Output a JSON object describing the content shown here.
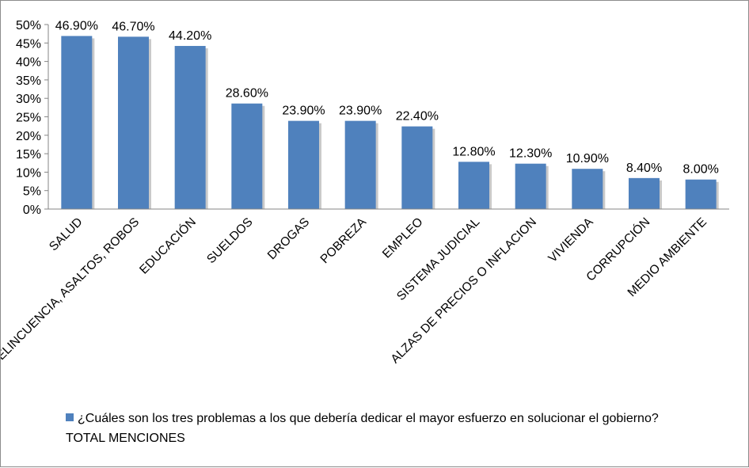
{
  "chart_data": {
    "type": "bar",
    "categories": [
      "SALUD",
      "DELINCUENCIA, ASALTOS, ROBOS",
      "EDUCACIÓN",
      "SUELDOS",
      "DROGAS",
      "POBREZA",
      "EMPLEO",
      "SISTEMA JUDICIAL",
      "ALZAS DE PRECIOS O INFLACION",
      "VIVIENDA",
      "CORRUPCIÓN",
      "MEDIO AMBIENTE"
    ],
    "series": [
      {
        "name": "¿Cuáles son los tres problemas a los que debería dedicar el mayor esfuerzo en solucionar el gobierno? TOTAL MENCIONES",
        "values": [
          46.9,
          46.7,
          44.2,
          28.6,
          23.9,
          23.9,
          22.4,
          12.8,
          12.3,
          10.9,
          8.4,
          8.0
        ],
        "labels": [
          "46.90%",
          "46.70%",
          "44.20%",
          "28.60%",
          "23.90%",
          "23.90%",
          "22.40%",
          "12.80%",
          "12.30%",
          "10.90%",
          "8.40%",
          "8.00%"
        ]
      }
    ],
    "y_ticks": [
      "0%",
      "5%",
      "10%",
      "15%",
      "20%",
      "25%",
      "30%",
      "35%",
      "40%",
      "45%",
      "50%"
    ],
    "ylim": [
      0,
      50
    ],
    "grid": false,
    "legend_position": "bottom",
    "bar_color": "#4f81bd"
  }
}
